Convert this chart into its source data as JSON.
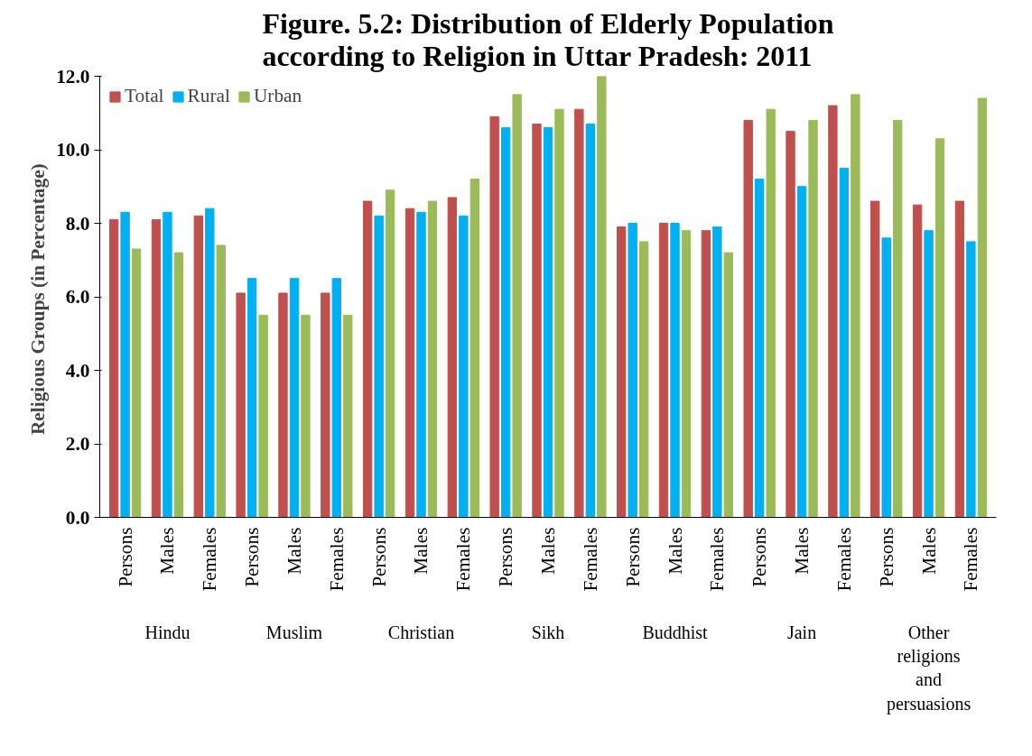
{
  "chart_data": {
    "type": "bar",
    "title": "Figure. 5.2: Distribution of Elderly Population according to Religion in Uttar Pradesh: 2011",
    "ylabel": "Religious  Groups (in Percentage)",
    "categories": [
      "Persons",
      "Males",
      "Females",
      "Persons",
      "Males",
      "Females",
      "Persons",
      "Males",
      "Females",
      "Persons",
      "Males",
      "Females",
      "Persons",
      "Males",
      "Females",
      "Persons",
      "Males",
      "Females",
      "Persons",
      "Males",
      "Females"
    ],
    "annotations": [
      "Hindu",
      "Muslim",
      "Christian",
      "Sikh",
      "Buddhist",
      "Jain",
      "Other religions and persuasions"
    ],
    "series": [
      {
        "name": "Total",
        "color": "#c0504d",
        "values": [
          8.1,
          8.1,
          8.2,
          6.1,
          6.1,
          6.1,
          8.6,
          8.4,
          8.7,
          10.9,
          10.7,
          11.1,
          7.9,
          8.0,
          7.8,
          10.8,
          10.5,
          11.2,
          8.6,
          8.5,
          8.6
        ]
      },
      {
        "name": "Rural",
        "color": "#00b0f0",
        "values": [
          8.3,
          8.3,
          8.4,
          6.5,
          6.5,
          6.5,
          8.2,
          8.3,
          8.2,
          10.6,
          10.6,
          10.7,
          8.0,
          8.0,
          7.9,
          9.2,
          9.0,
          9.5,
          7.6,
          7.8,
          7.5
        ]
      },
      {
        "name": "Urban",
        "color": "#9bbb59",
        "values": [
          7.3,
          7.2,
          7.4,
          5.5,
          5.5,
          5.5,
          8.9,
          8.6,
          9.2,
          11.5,
          11.1,
          12.0,
          7.5,
          7.8,
          7.2,
          11.1,
          10.8,
          11.5,
          10.8,
          10.3,
          11.4
        ]
      }
    ],
    "ylim": [
      0,
      12
    ],
    "yticks": [
      {
        "value": 0,
        "label": "0.0"
      },
      {
        "value": 2,
        "label": "2.0"
      },
      {
        "value": 4,
        "label": "4.0"
      },
      {
        "value": 6,
        "label": "6.0"
      },
      {
        "value": 8,
        "label": "8.0"
      },
      {
        "value": 10,
        "label": "10.0"
      },
      {
        "value": 12,
        "label": "12.0"
      }
    ],
    "grid": false,
    "legend": "top left"
  }
}
